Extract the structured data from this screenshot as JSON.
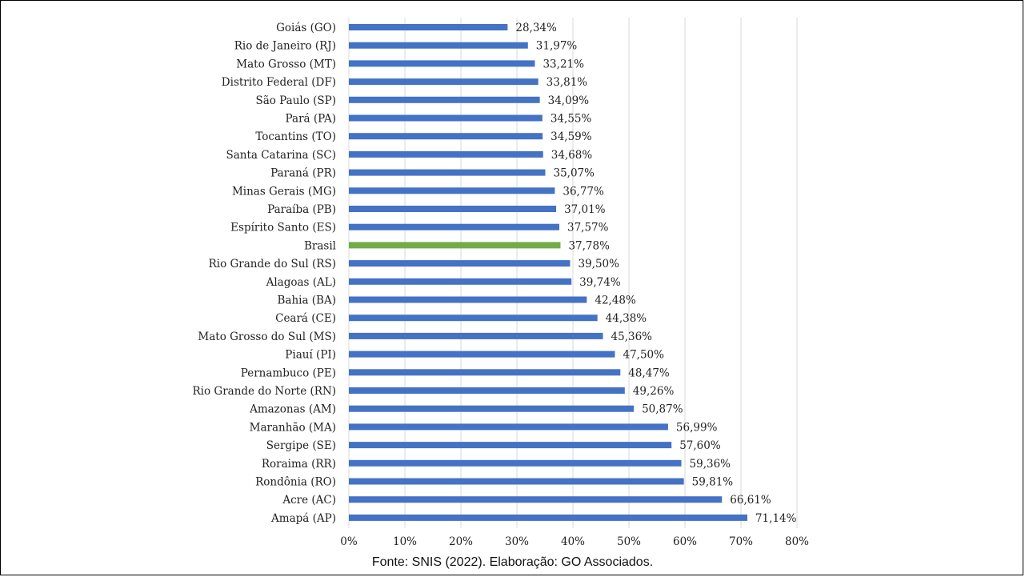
{
  "source_note": "Fonte: SNIS (2022). Elaboração: GO Associados.",
  "colors": {
    "bar": "#4472C4",
    "highlight": "#70AD47",
    "grid": "#D9D9D9"
  },
  "chart_data": {
    "type": "bar",
    "orientation": "horizontal",
    "title": "",
    "xlabel": "",
    "ylabel": "",
    "xlim": [
      0,
      80
    ],
    "xticks": [
      "0%",
      "10%",
      "20%",
      "30%",
      "40%",
      "50%",
      "60%",
      "70%",
      "80%"
    ],
    "grid": "vertical",
    "legend": "none",
    "highlight_category": "Brasil",
    "categories": [
      "Goiás (GO)",
      "Rio de Janeiro (RJ)",
      "Mato Grosso (MT)",
      "Distrito Federal (DF)",
      "São Paulo (SP)",
      "Pará (PA)",
      "Tocantins (TO)",
      "Santa Catarina (SC)",
      "Paraná (PR)",
      "Minas Gerais (MG)",
      "Paraíba (PB)",
      "Espírito Santo (ES)",
      "Brasil",
      "Rio Grande do Sul (RS)",
      "Alagoas (AL)",
      "Bahia (BA)",
      "Ceará (CE)",
      "Mato Grosso do Sul (MS)",
      "Piauí (PI)",
      "Pernambuco (PE)",
      "Rio Grande do Norte (RN)",
      "Amazonas (AM)",
      "Maranhão (MA)",
      "Sergipe (SE)",
      "Roraima (RR)",
      "Rondônia (RO)",
      "Acre (AC)",
      "Amapá (AP)"
    ],
    "values": [
      28.34,
      31.97,
      33.21,
      33.81,
      34.09,
      34.55,
      34.59,
      34.68,
      35.07,
      36.77,
      37.01,
      37.57,
      37.78,
      39.5,
      39.74,
      42.48,
      44.38,
      45.36,
      47.5,
      48.47,
      49.26,
      50.87,
      56.99,
      57.6,
      59.36,
      59.81,
      66.61,
      71.14
    ],
    "value_labels": [
      "28,34%",
      "31,97%",
      "33,21%",
      "33,81%",
      "34,09%",
      "34,55%",
      "34,59%",
      "34,68%",
      "35,07%",
      "36,77%",
      "37,01%",
      "37,57%",
      "37,78%",
      "39,50%",
      "39,74%",
      "42,48%",
      "44,38%",
      "45,36%",
      "47,50%",
      "48,47%",
      "49,26%",
      "50,87%",
      "56,99%",
      "57,60%",
      "59,36%",
      "59,81%",
      "66,61%",
      "71,14%"
    ]
  }
}
